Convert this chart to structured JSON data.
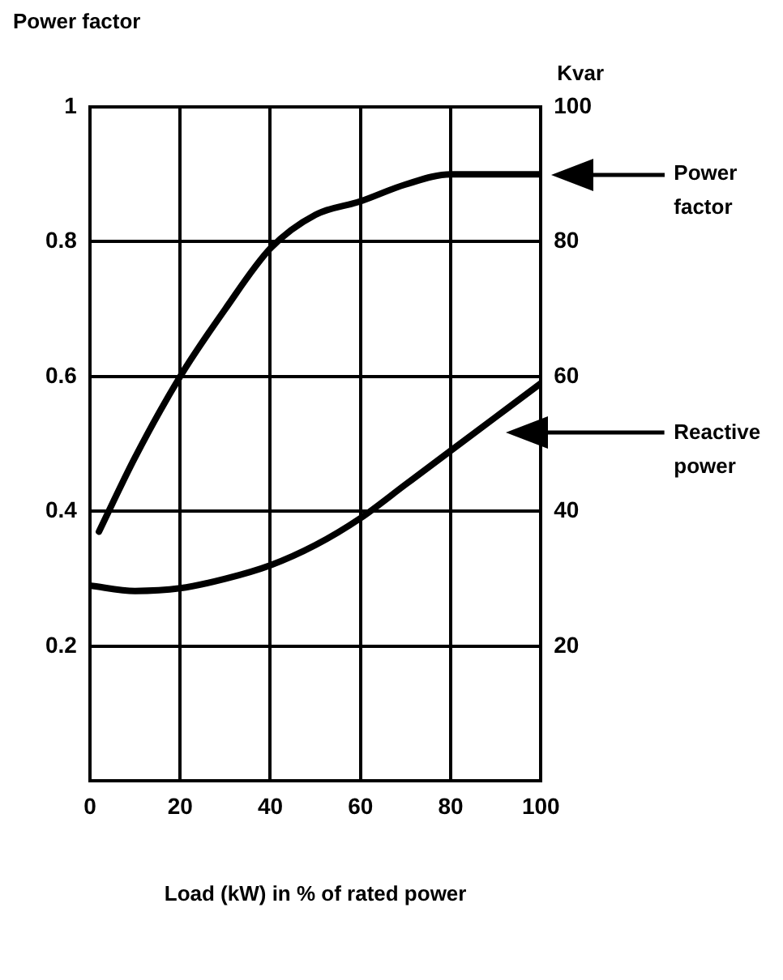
{
  "chart_data": {
    "type": "line",
    "xlabel": "Load (kW) in % of rated power",
    "ylabel": "Power factor",
    "y2label": "Kvar",
    "xlim": [
      0,
      100
    ],
    "xticks": [
      0,
      20,
      40,
      60,
      80,
      100
    ],
    "ylim": [
      0,
      1
    ],
    "yticks": [
      0.2,
      0.4,
      0.6,
      0.8,
      1
    ],
    "y2lim": [
      0,
      100
    ],
    "y2ticks": [
      20,
      40,
      60,
      80,
      100
    ],
    "grid": true,
    "legend": false,
    "marker": "none",
    "line_style": "solid",
    "annotations": [
      "Power factor",
      "Reactive power"
    ],
    "series": [
      {
        "color": "#000000",
        "x": [
          2,
          10,
          20,
          30,
          40,
          50,
          60,
          70,
          80,
          90,
          100
        ],
        "values": [
          0.37,
          0.48,
          0.6,
          0.7,
          0.79,
          0.84,
          0.86,
          0.885,
          0.9,
          0.9,
          0.9
        ]
      },
      {
        "color": "#000000",
        "axis": "y2",
        "x": [
          0,
          10,
          20,
          30,
          40,
          50,
          60,
          70,
          80,
          90,
          100
        ],
        "values": [
          29,
          28.2,
          28.6,
          30,
          32,
          35,
          39,
          44,
          49,
          54,
          59
        ]
      }
    ]
  }
}
